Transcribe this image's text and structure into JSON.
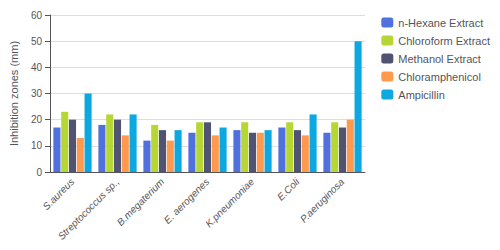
{
  "chart_data": {
    "type": "bar",
    "categories": [
      "S.aureus",
      "Streptococcus sp.,",
      "B.megaterium",
      "E. aerogenes",
      "K.pneumoniae",
      "E.Coli",
      "P.aeruginosa"
    ],
    "series": [
      {
        "name": "n-Hexane Extract",
        "values": [
          17,
          18,
          12,
          15,
          16,
          17,
          15
        ]
      },
      {
        "name": "Chloroform Extract",
        "values": [
          23,
          22,
          18,
          19,
          19,
          19,
          19
        ]
      },
      {
        "name": "Methanol Extract",
        "values": [
          20,
          20,
          16,
          19,
          15,
          16,
          17
        ]
      },
      {
        "name": "Chloramphenicol",
        "values": [
          13,
          14,
          12,
          14,
          15,
          14,
          20
        ]
      },
      {
        "name": "Ampicillin",
        "values": [
          30,
          22,
          16,
          17,
          16,
          22,
          50
        ]
      }
    ],
    "ylabel": "Inhibition zones (mm)",
    "ylim": [
      0,
      60
    ],
    "yticks": [
      0,
      10,
      20,
      30,
      40,
      50,
      60
    ],
    "grid": true,
    "legend": "upper right"
  }
}
